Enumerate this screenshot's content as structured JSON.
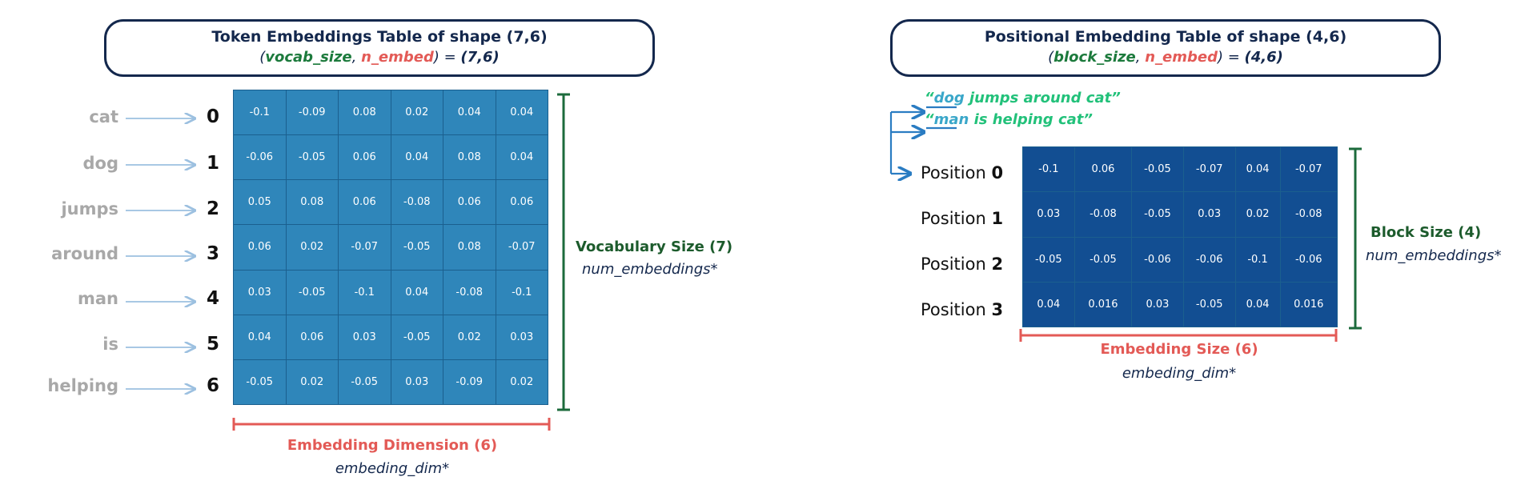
{
  "token_table": {
    "title_prefix": "Token Embeddings Table of shape ",
    "title_shape": "(7,6)",
    "subtitle": {
      "open": "(",
      "var1": "vocab_size",
      "sep": ", ",
      "var2": "n_embed",
      "close": ") = ",
      "shape": "(7,6)"
    },
    "tokens": [
      {
        "word": "cat",
        "index": "0"
      },
      {
        "word": "dog",
        "index": "1"
      },
      {
        "word": "jumps",
        "index": "2"
      },
      {
        "word": "around",
        "index": "3"
      },
      {
        "word": "man",
        "index": "4"
      },
      {
        "word": "is",
        "index": "5"
      },
      {
        "word": "helping",
        "index": "6"
      }
    ],
    "values": [
      [
        "-0.1",
        "-0.09",
        "0.08",
        "0.02",
        "0.04",
        "0.04"
      ],
      [
        "-0.06",
        "-0.05",
        "0.06",
        "0.04",
        "0.08",
        "0.04"
      ],
      [
        "0.05",
        "0.08",
        "0.06",
        "-0.08",
        "0.06",
        "0.06"
      ],
      [
        "0.06",
        "0.02",
        "-0.07",
        "-0.05",
        "0.08",
        "-0.07"
      ],
      [
        "0.03",
        "-0.05",
        "-0.1",
        "0.04",
        "-0.08",
        "-0.1"
      ],
      [
        "0.04",
        "0.06",
        "0.03",
        "-0.05",
        "0.02",
        "0.03"
      ],
      [
        "-0.05",
        "0.02",
        "-0.05",
        "0.03",
        "-0.09",
        "0.02"
      ]
    ],
    "side_label": {
      "title": "Vocabulary Size ",
      "value": "(7)",
      "sub": "num_embeddings*"
    },
    "bottom_label": {
      "title": "Embedding Dimension ",
      "value": "(6)",
      "sub": "embeding_dim*"
    },
    "cell_color": "#2f86ba"
  },
  "positional_table": {
    "title_prefix": "Positional Embedding Table of shape ",
    "title_shape": "(4,6)",
    "subtitle": {
      "open": "(",
      "var1": "block_size",
      "sep": ", ",
      "var2": "n_embed",
      "close": ") = ",
      "shape": "(4,6)"
    },
    "sentences": [
      {
        "first": "dog",
        "rest": " jumps around cat”",
        "quote": "“"
      },
      {
        "first": "man",
        "rest": " is helping cat”",
        "quote": "“"
      }
    ],
    "positions": [
      {
        "word": "Position ",
        "index": "0"
      },
      {
        "word": "Position ",
        "index": "1"
      },
      {
        "word": "Position ",
        "index": "2"
      },
      {
        "word": "Position ",
        "index": "3"
      }
    ],
    "values": [
      [
        "-0.1",
        "0.06",
        "-0.05",
        "-0.07",
        "0.04",
        "-0.07"
      ],
      [
        "0.03",
        "-0.08",
        "-0.05",
        "0.03",
        "0.02",
        "-0.08"
      ],
      [
        "-0.05",
        "-0.05",
        "-0.06",
        "-0.06",
        "-0.1",
        "-0.06"
      ],
      [
        "0.04",
        "0.016",
        "0.03",
        "-0.05",
        "0.04",
        "0.016"
      ]
    ],
    "side_label": {
      "title": "Block Size ",
      "value": "(4)",
      "sub": "num_embeddings*"
    },
    "bottom_label": {
      "title": "Embedding Size ",
      "value": "(6)",
      "sub": "embeding_dim*"
    },
    "cell_color": "#124e92"
  }
}
